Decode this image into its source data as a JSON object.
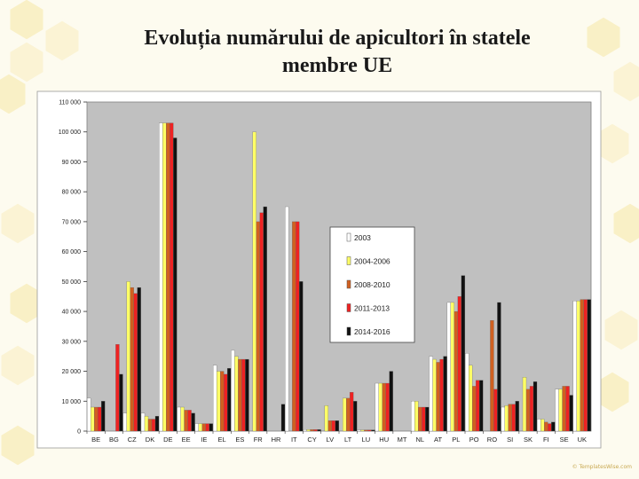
{
  "slide": {
    "title_line1": "Evoluția numărului de apicultori în statele",
    "title_line2": "membre UE",
    "watermark": "© TemplatesWise.com"
  },
  "colors": {
    "plot_bg": "#c0c0c0",
    "chart_bg": "#ffffff",
    "series": [
      "#ffffff",
      "#ffff66",
      "#d06020",
      "#ee2222",
      "#111111"
    ],
    "hex_fill": "#f9efc2"
  },
  "chart_data": {
    "type": "bar",
    "title": "",
    "xlabel": "",
    "ylabel": "",
    "ylim": [
      0,
      110000
    ],
    "yticks": [
      0,
      10000,
      20000,
      30000,
      40000,
      50000,
      60000,
      70000,
      80000,
      90000,
      100000,
      110000
    ],
    "ytick_labels": [
      "0",
      "10 000",
      "20 000",
      "30 000",
      "40 000",
      "50 000",
      "60 000",
      "70 000",
      "80 000",
      "90 000",
      "100 000",
      "110 000"
    ],
    "grid": false,
    "legend_position": "center-right",
    "categories": [
      "BE",
      "BG",
      "CZ",
      "DK",
      "DE",
      "EE",
      "IE",
      "EL",
      "ES",
      "FR",
      "HR",
      "IT",
      "CY",
      "LV",
      "LT",
      "LU",
      "HU",
      "MT",
      "NL",
      "AT",
      "PL",
      "PO",
      "RO",
      "SI",
      "SK",
      "FI",
      "SE",
      "UK"
    ],
    "series": [
      {
        "name": "2003",
        "values": [
          11000,
          0,
          6000,
          6000,
          103000,
          8000,
          2500,
          22000,
          27000,
          0,
          0,
          75000,
          500,
          0,
          0,
          400,
          16000,
          0,
          10000,
          25000,
          43000,
          26000,
          0,
          8000,
          0,
          4000,
          14000,
          43500
        ]
      },
      {
        "name": "2004-2006",
        "values": [
          8000,
          0,
          50000,
          5000,
          103000,
          8000,
          2500,
          20000,
          25000,
          100000,
          0,
          0,
          500,
          8500,
          11000,
          400,
          16000,
          0,
          10000,
          24000,
          43000,
          22000,
          0,
          8500,
          18000,
          4000,
          14000,
          43500
        ]
      },
      {
        "name": "2008-2010",
        "values": [
          8000,
          0,
          48000,
          4000,
          103000,
          7000,
          2500,
          20000,
          24000,
          70000,
          0,
          70000,
          500,
          3500,
          11000,
          400,
          16000,
          0,
          8000,
          23000,
          40000,
          15000,
          37000,
          9000,
          14000,
          3000,
          15000,
          44000
        ]
      },
      {
        "name": "2011-2013",
        "values": [
          8000,
          29000,
          46000,
          4000,
          103000,
          7000,
          2500,
          19000,
          24000,
          73000,
          0,
          70000,
          500,
          3500,
          13000,
          400,
          16000,
          0,
          8000,
          24000,
          45000,
          17000,
          14000,
          9000,
          15000,
          2500,
          15000,
          44000
        ]
      },
      {
        "name": "2014-2016",
        "values": [
          10000,
          19000,
          48000,
          5000,
          98000,
          6000,
          2500,
          21000,
          24000,
          75000,
          9000,
          50000,
          500,
          3500,
          10000,
          400,
          20000,
          0,
          8000,
          25000,
          52000,
          17000,
          43000,
          10000,
          16500,
          3000,
          12000,
          44000
        ]
      }
    ]
  }
}
